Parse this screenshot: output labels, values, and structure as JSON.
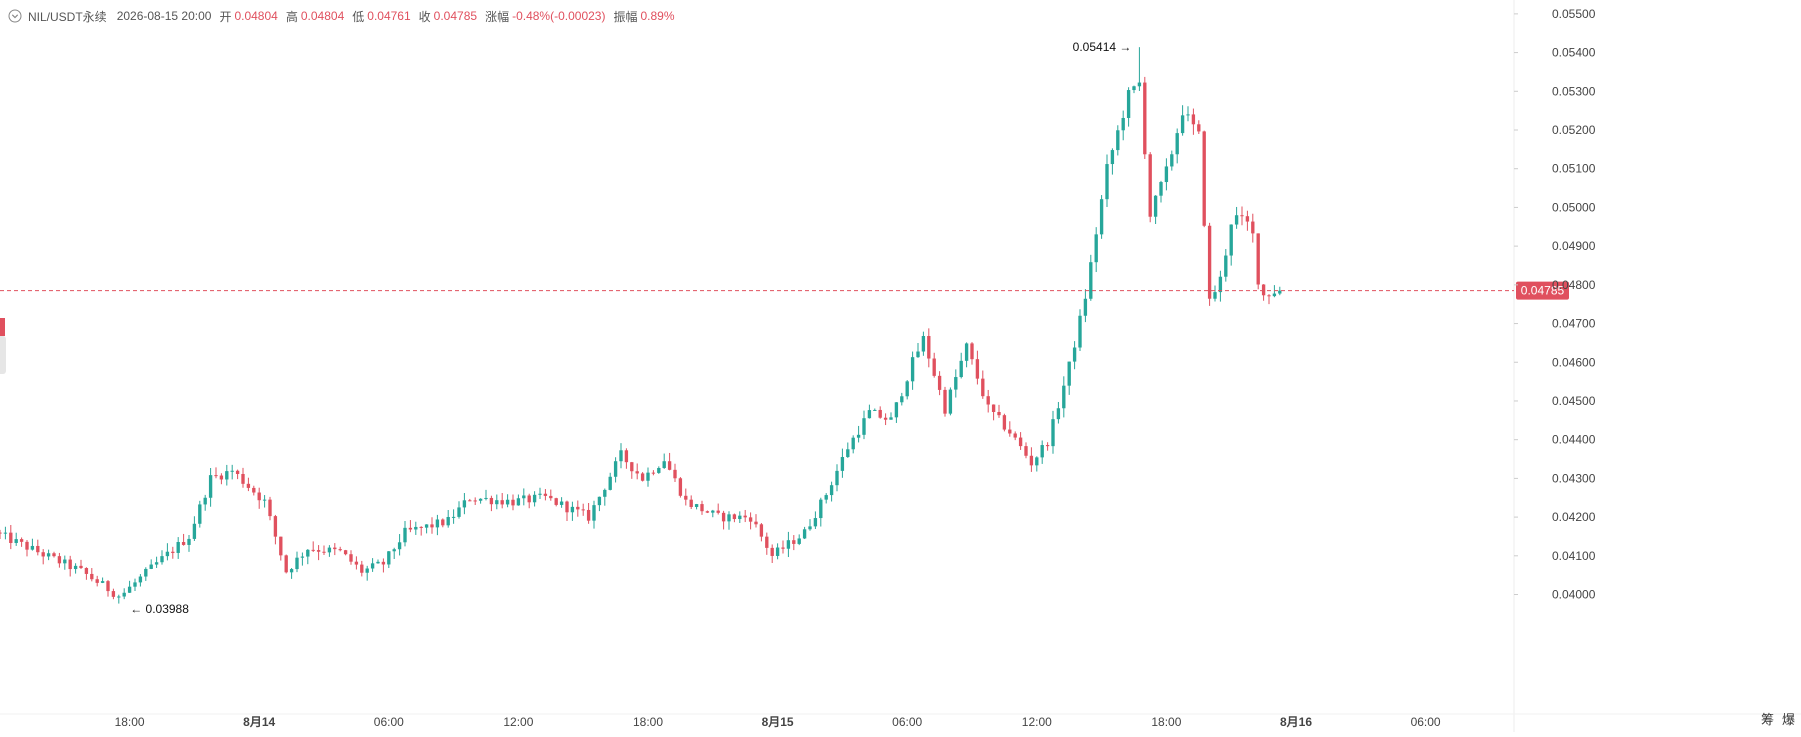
{
  "header": {
    "symbol": "NIL/USDT永续",
    "time": "2026-08-15 20:00",
    "open_label": "开",
    "open": "0.04804",
    "high_label": "高",
    "high": "0.04804",
    "low_label": "低",
    "low": "0.04761",
    "close_label": "收",
    "close": "0.04785",
    "change_label": "涨幅",
    "change": "-0.48%(-0.00023)",
    "amplitude_label": "振幅",
    "amplitude": "0.89%"
  },
  "corner": {
    "left": "筹",
    "right": "爆"
  },
  "colors": {
    "up": "#26a69a",
    "down": "#e0505e",
    "grid": "#f0f0f0",
    "axis_text": "#444444"
  },
  "chart_data": {
    "type": "candlestick",
    "interval_hours": 1,
    "current_price": 0.04785,
    "current_price_label": "0.04785",
    "high_marker": {
      "label": "0.05414",
      "value": 0.05414
    },
    "low_marker": {
      "label": "0.03988",
      "value": 0.03988
    },
    "ylim": [
      0.0396,
      0.0551
    ],
    "y_ticks": [
      "0.04000",
      "0.04100",
      "0.04200",
      "0.04300",
      "0.04400",
      "0.04500",
      "0.04600",
      "0.04700",
      "0.04800",
      "0.04900",
      "0.05000",
      "0.05100",
      "0.05200",
      "0.05300",
      "0.05400",
      "0.05500"
    ],
    "x_ticks": [
      {
        "label": "18:00",
        "offset_hours": 6,
        "bold": false
      },
      {
        "label": "8月14",
        "offset_hours": 12,
        "bold": true
      },
      {
        "label": "06:00",
        "offset_hours": 18,
        "bold": false
      },
      {
        "label": "12:00",
        "offset_hours": 24,
        "bold": false
      },
      {
        "label": "18:00",
        "offset_hours": 30,
        "bold": false
      },
      {
        "label": "8月15",
        "offset_hours": 36,
        "bold": true
      },
      {
        "label": "06:00",
        "offset_hours": 42,
        "bold": false
      },
      {
        "label": "12:00",
        "offset_hours": 48,
        "bold": false
      },
      {
        "label": "18:00",
        "offset_hours": 54,
        "bold": false
      },
      {
        "label": "8月16",
        "offset_hours": 60,
        "bold": true
      },
      {
        "label": "06:00",
        "offset_hours": 66,
        "bold": false
      }
    ],
    "x_range_hours": [
      0,
      70
    ],
    "anchors": [
      {
        "h": 0,
        "p": 0.0416
      },
      {
        "h": 2,
        "p": 0.0411
      },
      {
        "h": 4,
        "p": 0.0406
      },
      {
        "h": 5.8,
        "p": 0.03995
      },
      {
        "h": 7.5,
        "p": 0.0408
      },
      {
        "h": 9,
        "p": 0.0415
      },
      {
        "h": 10,
        "p": 0.043
      },
      {
        "h": 11,
        "p": 0.0432
      },
      {
        "h": 12.5,
        "p": 0.0424
      },
      {
        "h": 13.5,
        "p": 0.0406
      },
      {
        "h": 14.5,
        "p": 0.0412
      },
      {
        "h": 16,
        "p": 0.0411
      },
      {
        "h": 17,
        "p": 0.0406
      },
      {
        "h": 18,
        "p": 0.0408
      },
      {
        "h": 19,
        "p": 0.0416
      },
      {
        "h": 21,
        "p": 0.0419
      },
      {
        "h": 22,
        "p": 0.0425
      },
      {
        "h": 24,
        "p": 0.0424
      },
      {
        "h": 25.5,
        "p": 0.0425
      },
      {
        "h": 27.5,
        "p": 0.042
      },
      {
        "h": 29,
        "p": 0.0436
      },
      {
        "h": 30,
        "p": 0.043
      },
      {
        "h": 31,
        "p": 0.0435
      },
      {
        "h": 32,
        "p": 0.0424
      },
      {
        "h": 33.5,
        "p": 0.042
      },
      {
        "h": 35,
        "p": 0.042
      },
      {
        "h": 36,
        "p": 0.041
      },
      {
        "h": 37.5,
        "p": 0.0416
      },
      {
        "h": 38.5,
        "p": 0.0426
      },
      {
        "h": 39.5,
        "p": 0.0438
      },
      {
        "h": 40.5,
        "p": 0.0447
      },
      {
        "h": 41.5,
        "p": 0.0445
      },
      {
        "h": 42.5,
        "p": 0.046
      },
      {
        "h": 43,
        "p": 0.0466
      },
      {
        "h": 44,
        "p": 0.0448
      },
      {
        "h": 45,
        "p": 0.0464
      },
      {
        "h": 46,
        "p": 0.0448
      },
      {
        "h": 47,
        "p": 0.0442
      },
      {
        "h": 48,
        "p": 0.0434
      },
      {
        "h": 48.8,
        "p": 0.044
      },
      {
        "h": 49.8,
        "p": 0.046
      },
      {
        "h": 50.5,
        "p": 0.0477
      },
      {
        "h": 51.5,
        "p": 0.051
      },
      {
        "h": 52.5,
        "p": 0.0529
      },
      {
        "h": 53,
        "p": 0.0532
      },
      {
        "h": 53.5,
        "p": 0.0498
      },
      {
        "h": 54.3,
        "p": 0.051
      },
      {
        "h": 55,
        "p": 0.0525
      },
      {
        "h": 55.8,
        "p": 0.0518
      },
      {
        "h": 56.2,
        "p": 0.0475
      },
      {
        "h": 56.8,
        "p": 0.0482
      },
      {
        "h": 57.3,
        "p": 0.0498
      },
      {
        "h": 58.2,
        "p": 0.0495
      },
      {
        "h": 58.6,
        "p": 0.0477
      },
      {
        "h": 59.3,
        "p": 0.04785
      }
    ]
  }
}
